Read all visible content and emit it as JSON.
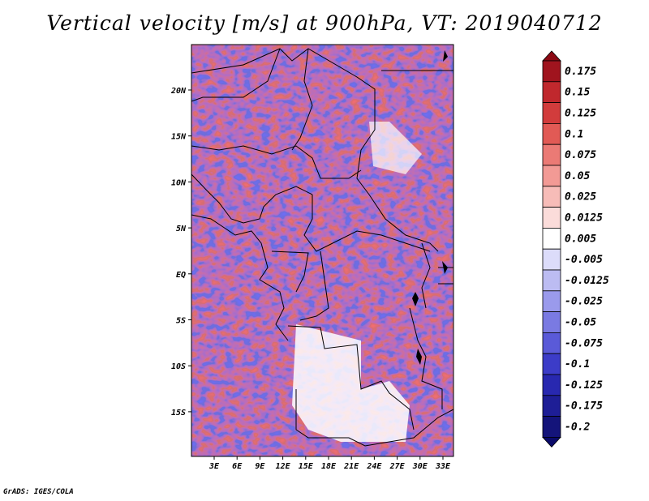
{
  "title": "Vertical velocity [m/s] at 900hPa, VT: 2019040712",
  "credit": "GrADS: IGES/COLA",
  "map": {
    "lat_labels": [
      "20N",
      "15N",
      "10N",
      "5N",
      "EQ",
      "5S",
      "10S",
      "15S"
    ],
    "lon_labels": [
      "3E",
      "6E",
      "9E",
      "12E",
      "15E",
      "18E",
      "21E",
      "24E",
      "27E",
      "30E",
      "33E"
    ]
  },
  "colorbar": {
    "labels": [
      "0.175",
      "0.15",
      "0.125",
      "0.1",
      "0.075",
      "0.05",
      "0.025",
      "0.0125",
      "0.005",
      "-0.005",
      "-0.0125",
      "-0.025",
      "-0.05",
      "-0.075",
      "-0.1",
      "-0.125",
      "-0.175",
      "-0.2"
    ],
    "colors": [
      "#a0141e",
      "#c0282d",
      "#d23c3c",
      "#e15a55",
      "#eb7a75",
      "#f29a95",
      "#f7bcb8",
      "#fbdcda",
      "#ffffff",
      "#dcdcfa",
      "#bcbcf2",
      "#9a9aec",
      "#7a7ae2",
      "#5a5ad8",
      "#3c3cc8",
      "#2828b0",
      "#1e1e96",
      "#14147a"
    ],
    "top_color": "#8c0a14",
    "bottom_color": "#0a0a6a"
  }
}
